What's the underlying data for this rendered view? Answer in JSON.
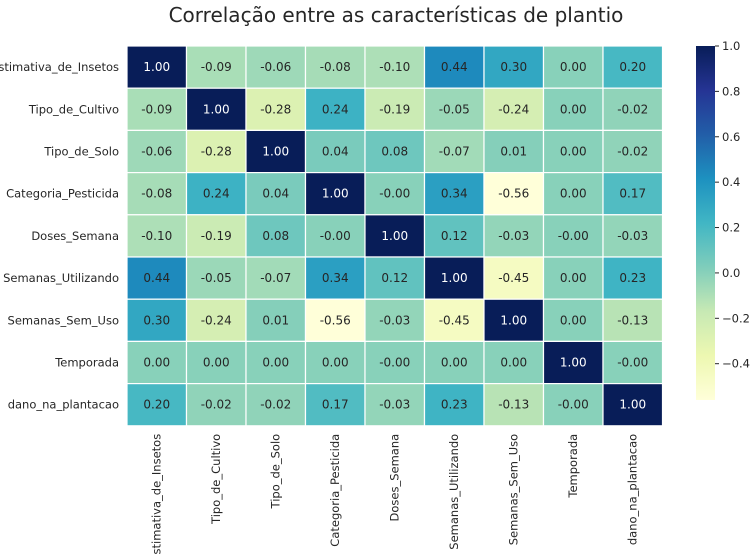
{
  "chart_data": {
    "type": "heatmap",
    "title": "Correlação entre as características de plantio",
    "rows": [
      "Estimativa_de_Insetos",
      "Tipo_de_Cultivo",
      "Tipo_de_Solo",
      "Categoria_Pesticida",
      "Doses_Semana",
      "Semanas_Utilizando",
      "Semanas_Sem_Uso",
      "Temporada",
      "dano_na_plantacao"
    ],
    "columns": [
      "Estimativa_de_Insetos",
      "Tipo_de_Cultivo",
      "Tipo_de_Solo",
      "Categoria_Pesticida",
      "Doses_Semana",
      "Semanas_Utilizando",
      "Semanas_Sem_Uso",
      "Temporada",
      "dano_na_plantacao"
    ],
    "labels": [
      [
        "1.00",
        "-0.09",
        "-0.06",
        "-0.08",
        "-0.10",
        "0.44",
        "0.30",
        "0.00",
        "0.20"
      ],
      [
        "-0.09",
        "1.00",
        "-0.28",
        "0.24",
        "-0.19",
        "-0.05",
        "-0.24",
        "0.00",
        "-0.02"
      ],
      [
        "-0.06",
        "-0.28",
        "1.00",
        "0.04",
        "0.08",
        "-0.07",
        "0.01",
        "0.00",
        "-0.02"
      ],
      [
        "-0.08",
        "0.24",
        "0.04",
        "1.00",
        "-0.00",
        "0.34",
        "-0.56",
        "0.00",
        "0.17"
      ],
      [
        "-0.10",
        "-0.19",
        "0.08",
        "-0.00",
        "1.00",
        "0.12",
        "-0.03",
        "-0.00",
        "-0.03"
      ],
      [
        "0.44",
        "-0.05",
        "-0.07",
        "0.34",
        "0.12",
        "1.00",
        "-0.45",
        "0.00",
        "0.23"
      ],
      [
        "0.30",
        "-0.24",
        "0.01",
        "-0.56",
        "-0.03",
        "-0.45",
        "1.00",
        "0.00",
        "-0.13"
      ],
      [
        "0.00",
        "0.00",
        "0.00",
        "0.00",
        "-0.00",
        "0.00",
        "0.00",
        "1.00",
        "-0.00"
      ],
      [
        "0.20",
        "-0.02",
        "-0.02",
        "0.17",
        "-0.03",
        "0.23",
        "-0.13",
        "-0.00",
        "1.00"
      ]
    ],
    "colormap": "YlGnBu",
    "vmin": -0.56,
    "vmax": 1.0,
    "colorbar": {
      "ticks": [
        "1.0",
        "0.8",
        "0.6",
        "0.4",
        "0.2",
        "0.0",
        "−0.2",
        "−0.4"
      ],
      "tick_values": [
        1.0,
        0.8,
        0.6,
        0.4,
        0.2,
        0.0,
        -0.2,
        -0.4
      ],
      "colors": [
        "#ffffd9",
        "#edf8b1",
        "#c7e9b4",
        "#7fcdbb",
        "#41b6c4",
        "#1d91c0",
        "#225ea8",
        "#253494",
        "#081d58"
      ]
    },
    "grid": false,
    "cell_gap_color": "#ffffff"
  }
}
